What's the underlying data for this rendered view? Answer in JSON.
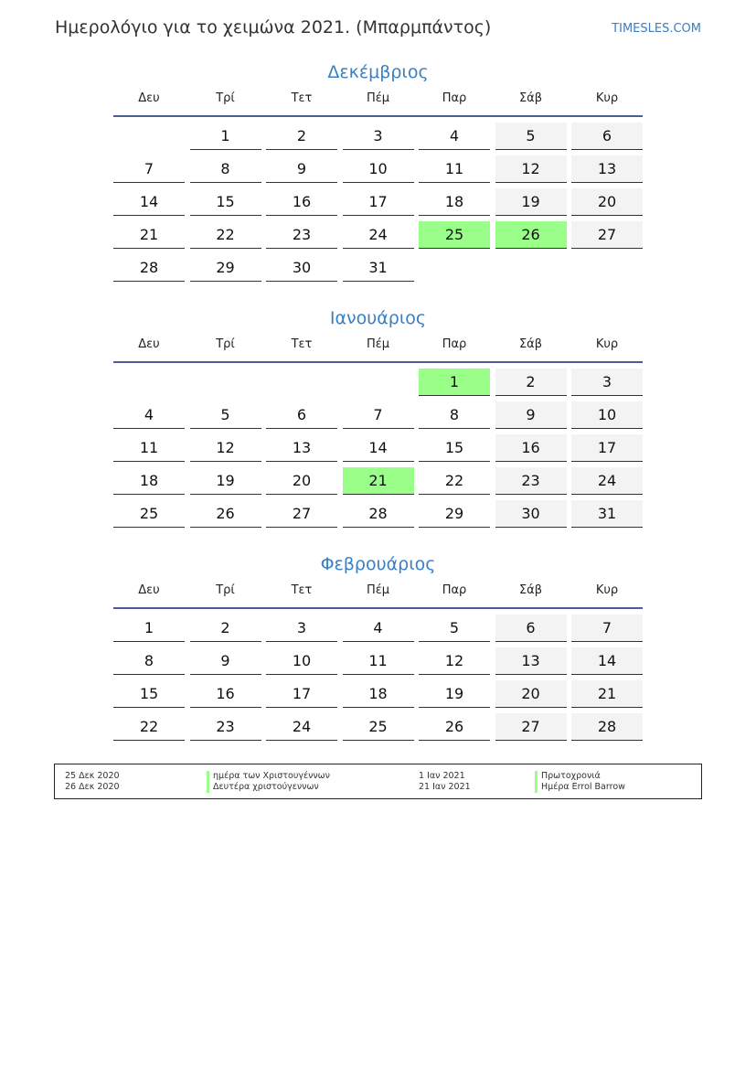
{
  "header": {
    "title": "Ημερολόγιο για το χειμώνα 2021. (Μπαρμπάντος)",
    "brand": "TIMESLES.COM"
  },
  "weekdays": [
    "Δευ",
    "Τρί",
    "Τετ",
    "Πέμ",
    "Παρ",
    "Σάβ",
    "Κυρ"
  ],
  "colors": {
    "holiday": "#99ff88",
    "weekend": "#f3f3f3",
    "accent": "#3a7fc1"
  },
  "months": [
    {
      "name": "Δεκέμβριος",
      "holidays": [
        25,
        26
      ],
      "weeks": [
        [
          null,
          1,
          2,
          3,
          4,
          5,
          6
        ],
        [
          7,
          8,
          9,
          10,
          11,
          12,
          13
        ],
        [
          14,
          15,
          16,
          17,
          18,
          19,
          20
        ],
        [
          21,
          22,
          23,
          24,
          25,
          26,
          27
        ],
        [
          28,
          29,
          30,
          31,
          null,
          null,
          null
        ]
      ]
    },
    {
      "name": "Ιανουάριος",
      "holidays": [
        1,
        21
      ],
      "weeks": [
        [
          null,
          null,
          null,
          null,
          1,
          2,
          3
        ],
        [
          4,
          5,
          6,
          7,
          8,
          9,
          10
        ],
        [
          11,
          12,
          13,
          14,
          15,
          16,
          17
        ],
        [
          18,
          19,
          20,
          21,
          22,
          23,
          24
        ],
        [
          25,
          26,
          27,
          28,
          29,
          30,
          31
        ]
      ]
    },
    {
      "name": "Φεβρουάριος",
      "holidays": [],
      "weeks": [
        [
          1,
          2,
          3,
          4,
          5,
          6,
          7
        ],
        [
          8,
          9,
          10,
          11,
          12,
          13,
          14
        ],
        [
          15,
          16,
          17,
          18,
          19,
          20,
          21
        ],
        [
          22,
          23,
          24,
          25,
          26,
          27,
          28
        ]
      ]
    }
  ],
  "legend": [
    {
      "date": "25 Δεκ 2020",
      "name": "ημέρα των Χριστουγέννων"
    },
    {
      "date": "26 Δεκ 2020",
      "name": "Δευτέρα χριστούγεννων"
    },
    {
      "date": "1 Ιαν 2021",
      "name": "Πρωτοχρονιά"
    },
    {
      "date": "21 Ιαν 2021",
      "name": "Ημέρα Errol Barrow"
    }
  ]
}
